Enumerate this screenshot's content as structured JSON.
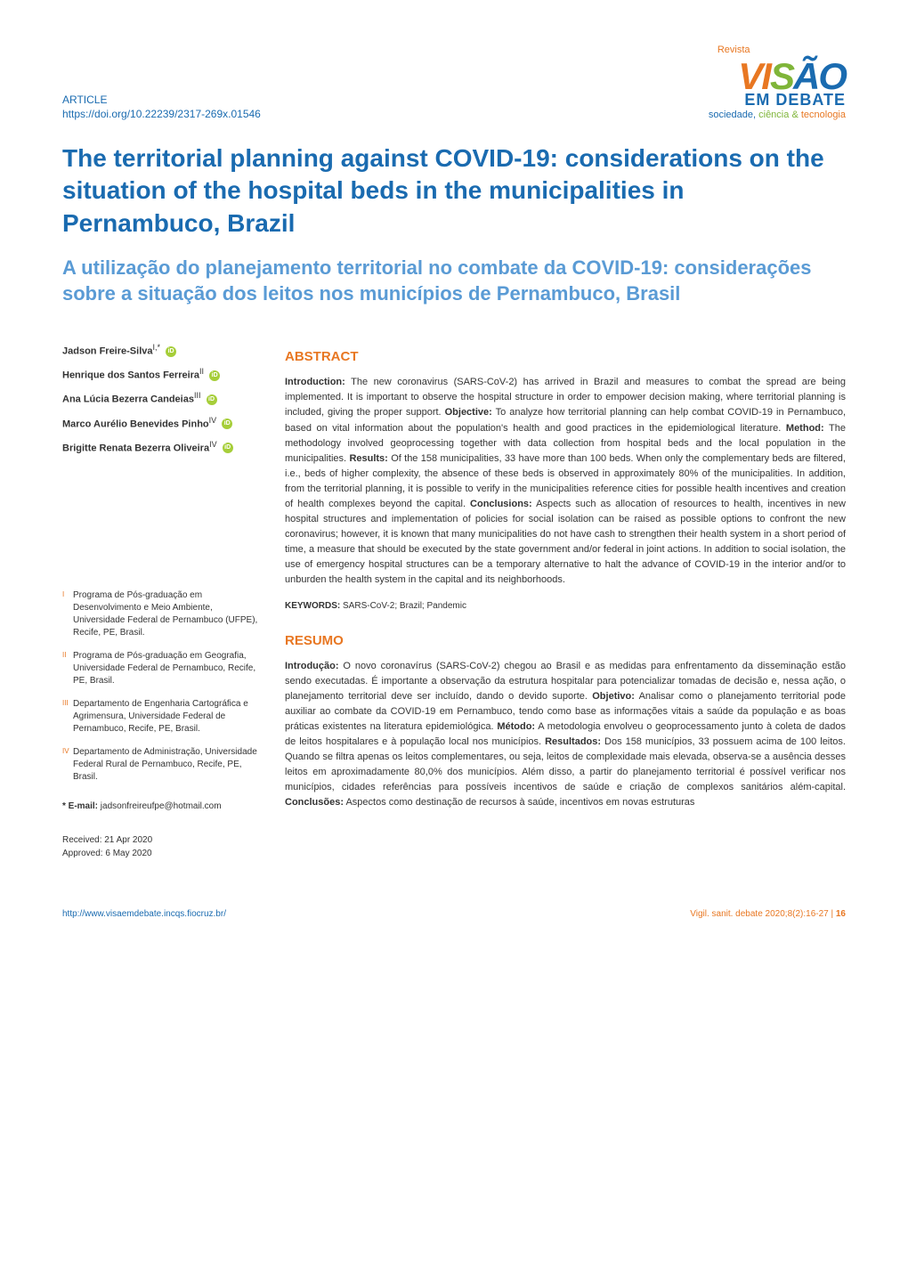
{
  "colors": {
    "primary_blue": "#1a6bb0",
    "light_blue": "#5a9bd5",
    "orange": "#e87722",
    "green": "#7fb539",
    "orcid_green": "#a6ce39",
    "text": "#333333",
    "background": "#ffffff"
  },
  "typography": {
    "title_en_size": 28,
    "title_pt_size": 22,
    "section_heading_size": 15,
    "body_size": 11,
    "footer_size": 10
  },
  "header": {
    "article_label": "ARTICLE",
    "doi": "https://doi.org/10.22239/2317-269x.01546",
    "logo": {
      "revista": "Revista",
      "main": "VISÃO",
      "debate": "EM DEBATE",
      "tagline_sociedade": "sociedade,",
      "tagline_ciencia": "ciência",
      "tagline_amp": "&",
      "tagline_tecnologia": "tecnologia"
    }
  },
  "title_en": "The territorial planning against COVID-19: considerations on the situation of the hospital beds in the municipalities in Pernambuco, Brazil",
  "title_pt": "A utilização do planejamento territorial no combate da COVID-19: considerações sobre a situação dos leitos nos municípios de Pernambuco, Brasil",
  "authors": [
    {
      "name": "Jadson Freire-Silva",
      "sup": "I,*"
    },
    {
      "name": "Henrique dos Santos Ferreira",
      "sup": "II"
    },
    {
      "name": "Ana Lúcia Bezerra Candeias",
      "sup": "III"
    },
    {
      "name": "Marco Aurélio Benevides Pinho",
      "sup": "IV"
    },
    {
      "name": "Brigitte Renata Bezerra Oliveira",
      "sup": "IV"
    }
  ],
  "affiliations": [
    {
      "sup": "I",
      "text": "Programa de Pós-graduação em Desenvolvimento e Meio Ambiente, Universidade Federal de Pernambuco (UFPE), Recife, PE, Brasil."
    },
    {
      "sup": "II",
      "text": "Programa de Pós-graduação em Geografia, Universidade Federal de Pernambuco, Recife, PE, Brasil."
    },
    {
      "sup": "III",
      "text": "Departamento de Engenharia Cartográfica e Agrimensura, Universidade Federal de Pernambuco, Recife, PE, Brasil."
    },
    {
      "sup": "IV",
      "text": "Departamento de Administração, Universidade Federal Rural de Pernambuco, Recife, PE, Brasil."
    }
  ],
  "email": {
    "label": "* E-mail:",
    "value": "jadsonfreireufpe@hotmail.com"
  },
  "dates": {
    "received": "Received: 21 Apr 2020",
    "approved": "Approved: 6 May 2020"
  },
  "abstract": {
    "heading": "ABSTRACT",
    "intro_label": "Introduction:",
    "intro": "The new coronavirus (SARS-CoV-2) has arrived in Brazil and measures to combat the spread are being implemented. It is important to observe the hospital structure in order to empower decision making, where territorial planning is included, giving the proper support.",
    "obj_label": "Objective:",
    "obj": "To analyze how territorial planning can help combat COVID-19 in Pernambuco, based on vital information about the population's health and good practices in the epidemiological literature.",
    "method_label": "Method:",
    "method": "The methodology involved geoprocessing together with data collection from hospital beds and the local population in the municipalities.",
    "results_label": "Results:",
    "results": "Of the 158 municipalities, 33 have more than 100 beds. When only the complementary beds are filtered, i.e., beds of higher complexity, the absence of these beds is observed in approximately 80% of the municipalities. In addition, from the territorial planning, it is possible to verify in the municipalities reference cities for possible health incentives and creation of health complexes beyond the capital.",
    "conclusions_label": "Conclusions:",
    "conclusions": "Aspects such as allocation of resources to health, incentives in new hospital structures and implementation of policies for social isolation can be raised as possible options to confront the new coronavirus; however, it is known that many municipalities do not have cash to strengthen their health system in a short period of time, a measure that should be executed by the state government and/or federal in joint actions. In addition to social isolation, the use of emergency hospital structures can be a temporary alternative to halt the advance of COVID-19 in the interior and/or to unburden the health system in the capital and its neighborhoods.",
    "keywords_label": "KEYWORDS:",
    "keywords": "SARS-CoV-2; Brazil; Pandemic"
  },
  "resumo": {
    "heading": "RESUMO",
    "intro_label": "Introdução:",
    "intro": "O novo coronavírus (SARS-CoV-2) chegou ao Brasil e as medidas para enfrentamento da disseminação estão sendo executadas. É importante a observação da estrutura hospitalar para potencializar tomadas de decisão e, nessa ação, o planejamento territorial deve ser incluído, dando o devido suporte.",
    "obj_label": "Objetivo:",
    "obj": "Analisar como o planejamento territorial pode auxiliar ao combate da COVID-19 em Pernambuco, tendo como base as informações vitais a saúde da população e as boas práticas existentes na literatura epidemiológica.",
    "method_label": "Método:",
    "method": "A metodologia envolveu o geoprocessamento junto à coleta de dados de leitos hospitalares e à população local nos municípios.",
    "results_label": "Resultados:",
    "results": "Dos 158 municípios, 33 possuem acima de 100 leitos. Quando se filtra apenas os leitos complementares, ou seja, leitos de complexidade mais elevada, observa-se a ausência desses leitos em aproximadamente 80,0% dos municípios. Além disso, a partir do planejamento territorial é possível verificar nos municípios, cidades referências para possíveis incentivos de saúde e criação de complexos sanitários além-capital.",
    "conclusions_label": "Conclusões:",
    "conclusions": "Aspectos como destinação de recursos à saúde, incentivos em novas estruturas"
  },
  "footer": {
    "url": "http://www.visaemdebate.incqs.fiocruz.br/",
    "citation": "Vigil. sanit. debate 2020;8(2):16-27   |",
    "page": "16"
  }
}
